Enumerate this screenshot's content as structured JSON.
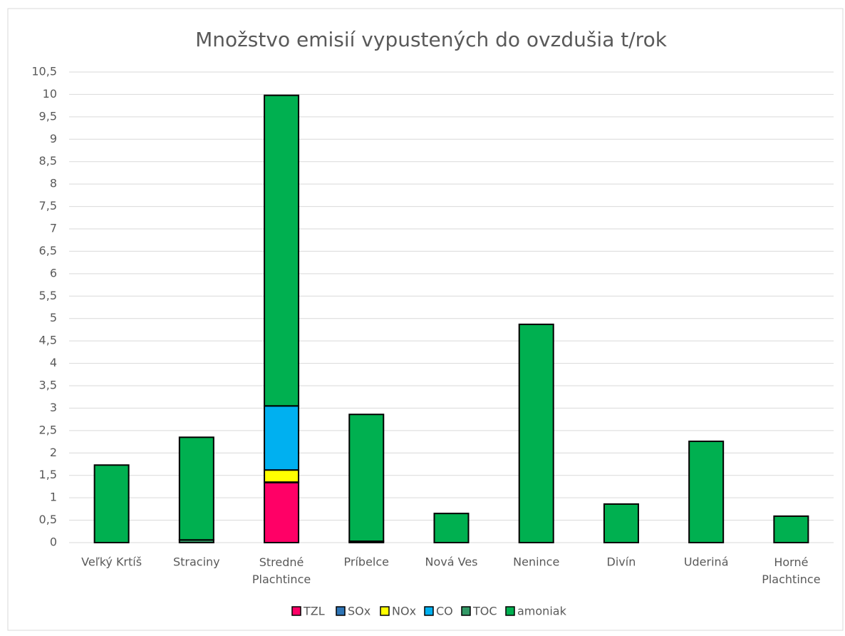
{
  "chart_data": {
    "type": "stacked_bar",
    "title": "Množstvo emisií vypustených do ovzdušia t/rok",
    "categories": [
      "Veľký Krtíš",
      "Straciny",
      "Stredné Plachtince",
      "Príbelce",
      "Nová Ves",
      "Nenince",
      "Divín",
      "Uderiná",
      "Horné Plachtince"
    ],
    "series": [
      {
        "name": "TZL",
        "color": "#ff0066",
        "values": [
          0,
          0,
          1.34,
          0,
          0,
          0,
          0,
          0,
          0
        ]
      },
      {
        "name": "SOx",
        "color": "#2e75b6",
        "values": [
          0,
          0,
          0.01,
          0,
          0,
          0,
          0,
          0,
          0
        ]
      },
      {
        "name": "NOx",
        "color": "#ffff00",
        "values": [
          0,
          0,
          0.27,
          0,
          0,
          0,
          0,
          0,
          0
        ]
      },
      {
        "name": "CO",
        "color": "#00b0f0",
        "values": [
          0,
          0,
          1.43,
          0,
          0,
          0,
          0,
          0,
          0
        ]
      },
      {
        "name": "TOC",
        "color": "#339966",
        "values": [
          0,
          0.06,
          0,
          0.03,
          0,
          0,
          0,
          0,
          0
        ]
      },
      {
        "name": "amoniak",
        "color": "#00b050",
        "values": [
          1.73,
          2.29,
          6.93,
          2.83,
          0.65,
          4.87,
          0.86,
          2.26,
          0.59
        ]
      }
    ],
    "ylim": [
      0,
      10.5
    ],
    "yticks": [
      0,
      {
        "value": 0.5,
        "label": "0,5"
      },
      1,
      {
        "value": 1.5,
        "label": "1,5"
      },
      2,
      {
        "value": 2.5,
        "label": "2,5"
      },
      3,
      {
        "value": 3.5,
        "label": "3,5"
      },
      4,
      {
        "value": 4.5,
        "label": "4,5"
      },
      5,
      {
        "value": 5.5,
        "label": "5,5"
      },
      6,
      {
        "value": 6.5,
        "label": "6,5"
      },
      7,
      {
        "value": 7.5,
        "label": "7,5"
      },
      8,
      {
        "value": 8.5,
        "label": "8,5"
      },
      9,
      {
        "value": 9.5,
        "label": "9,5"
      },
      10,
      {
        "value": 10.5,
        "label": "10,5"
      }
    ],
    "grid": true,
    "legend": "bottom"
  }
}
